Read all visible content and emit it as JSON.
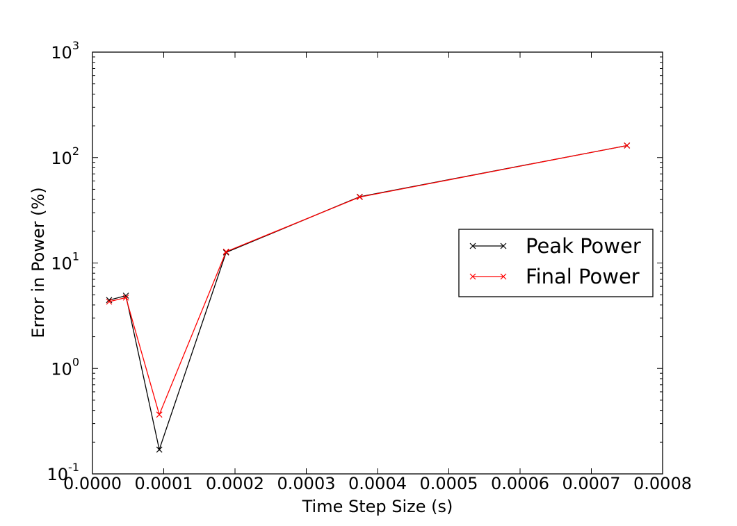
{
  "chart_data": {
    "type": "line",
    "title": "",
    "xlabel": "Time Step Size (s)",
    "ylabel": "Error in Power (%)",
    "xlim": [
      0,
      0.0008
    ],
    "ylim": [
      0.1,
      1000
    ],
    "yscale": "log",
    "grid": false,
    "legend_position": "center-right",
    "x_ticks": [
      "0.0000",
      "0.0001",
      "0.0002",
      "0.0003",
      "0.0004",
      "0.0005",
      "0.0006",
      "0.0007",
      "0.0008"
    ],
    "y_ticks": [
      {
        "base": "10",
        "exp": "-1"
      },
      {
        "base": "10",
        "exp": "0"
      },
      {
        "base": "10",
        "exp": "1"
      },
      {
        "base": "10",
        "exp": "2"
      },
      {
        "base": "10",
        "exp": "3"
      }
    ],
    "x": [
      2.34e-05,
      4.69e-05,
      9.38e-05,
      0.0001875,
      0.000375,
      0.00075
    ],
    "series": [
      {
        "name": "Peak Power",
        "color": "#000000",
        "marker": "x",
        "values": [
          4.45,
          4.9,
          0.17,
          12.6,
          42.5,
          130
        ]
      },
      {
        "name": "Final Power",
        "color": "#ff0000",
        "marker": "x",
        "values": [
          4.3,
          4.7,
          0.365,
          12.8,
          42.2,
          130
        ]
      }
    ]
  }
}
